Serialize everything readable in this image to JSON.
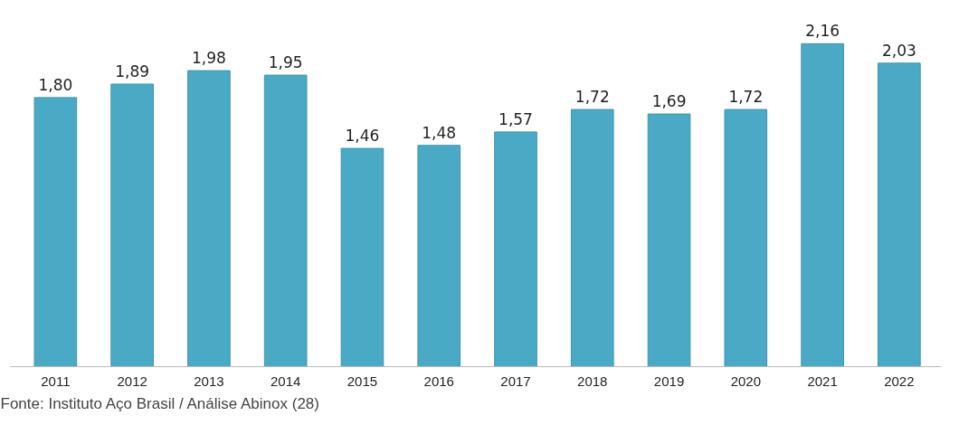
{
  "chart_data": {
    "type": "bar",
    "categories": [
      "2011",
      "2012",
      "2013",
      "2014",
      "2015",
      "2016",
      "2017",
      "2018",
      "2019",
      "2020",
      "2021",
      "2022"
    ],
    "values": [
      1.8,
      1.89,
      1.98,
      1.95,
      1.46,
      1.48,
      1.57,
      1.72,
      1.69,
      1.72,
      2.16,
      2.03
    ],
    "value_labels": [
      "1,80",
      "1,89",
      "1,98",
      "1,95",
      "1,46",
      "1,48",
      "1,57",
      "1,72",
      "1,69",
      "1,72",
      "2,16",
      "2,03"
    ],
    "color": "#4aaac6",
    "grid": false,
    "annotations": [
      "Fonte: Instituto Aço Brasil / Análise Abinox (28)"
    ]
  }
}
